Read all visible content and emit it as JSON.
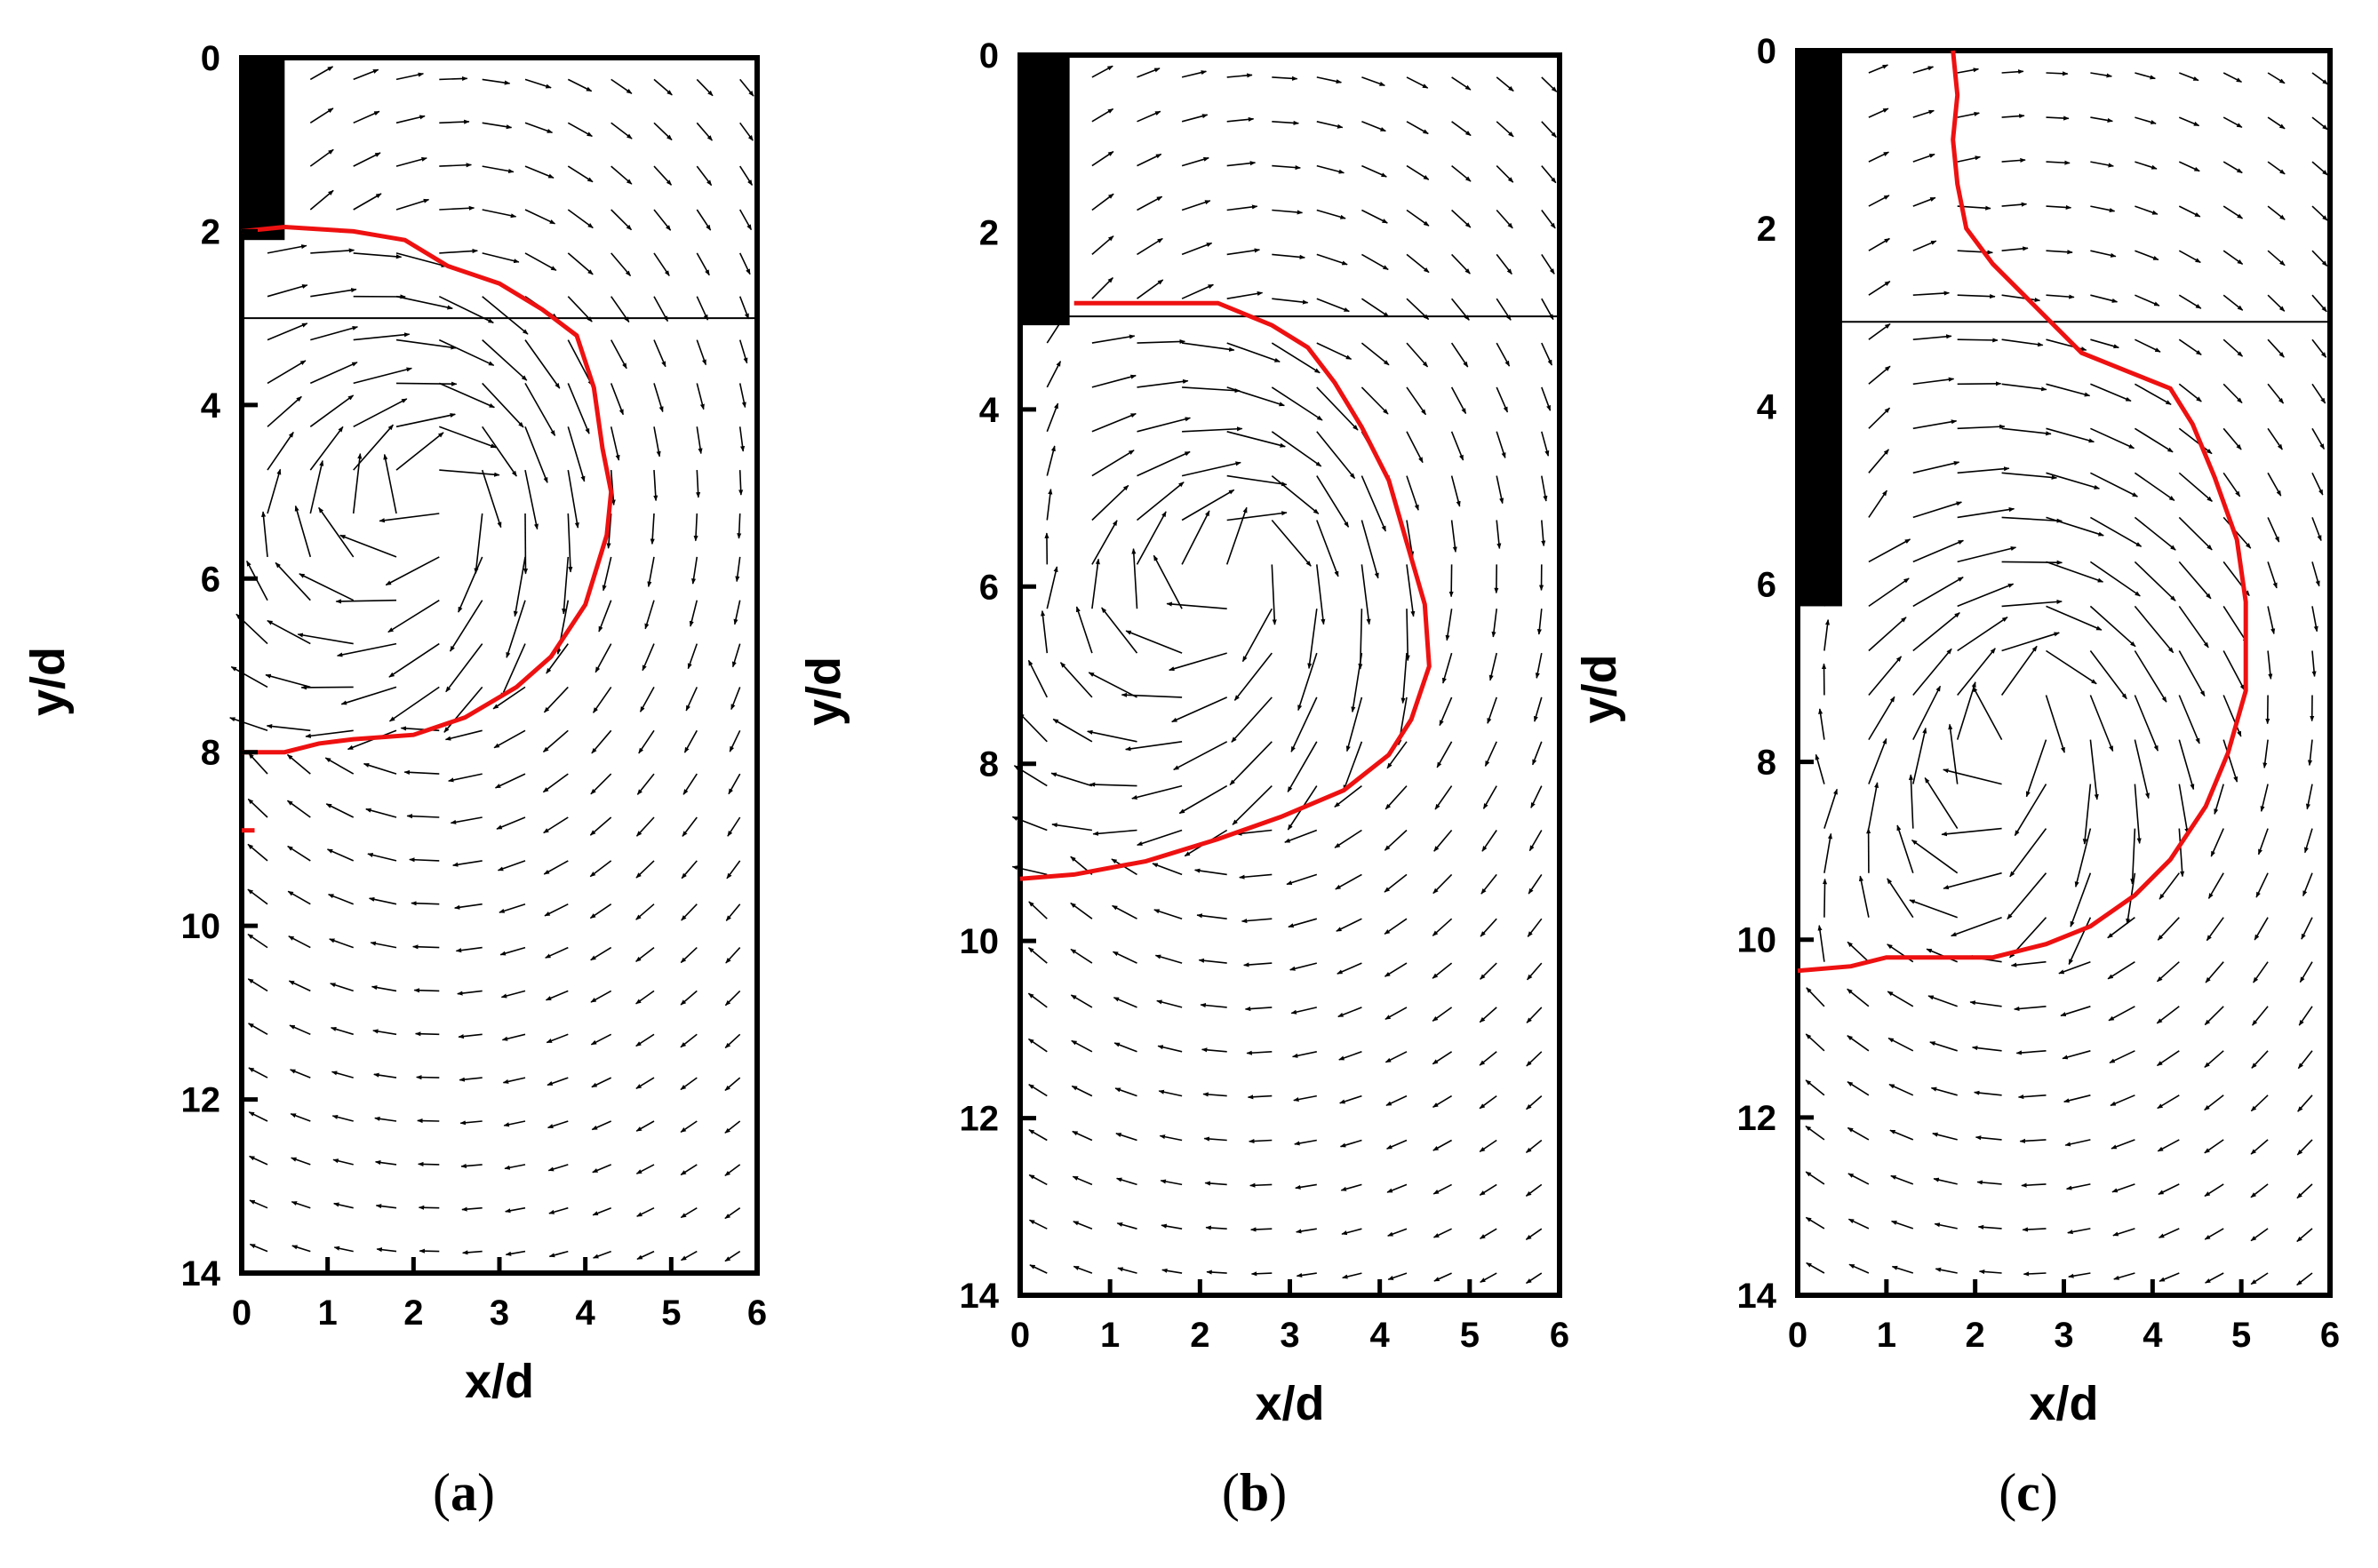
{
  "chart_data": [
    {
      "type": "vector-field",
      "panel_label": "(a)",
      "panel_letter": "a",
      "xlabel": "x/d",
      "ylabel": "y/d",
      "xlim": [
        0,
        6
      ],
      "ylim": [
        14,
        0
      ],
      "x_ticks": [
        "0",
        "1",
        "2",
        "3",
        "4",
        "5",
        "6"
      ],
      "y_ticks": [
        "0",
        "2",
        "4",
        "6",
        "8",
        "10",
        "12",
        "14"
      ],
      "wall": {
        "x_range": [
          0,
          0.5
        ],
        "y_range": [
          0,
          2.1
        ]
      },
      "horizontal_line_y": 3.0,
      "flow": {
        "jet_angle_deg": 75,
        "center": [
          2.4,
          5.0
        ],
        "stretch": 1.7
      },
      "boundary": {
        "color": "#ee1111",
        "points": [
          [
            0,
            2.0
          ],
          [
            0.5,
            1.95
          ],
          [
            1.3,
            2.0
          ],
          [
            1.9,
            2.1
          ],
          [
            2.4,
            2.4
          ],
          [
            3.0,
            2.6
          ],
          [
            3.5,
            2.9
          ],
          [
            3.9,
            3.2
          ],
          [
            4.1,
            3.8
          ],
          [
            4.2,
            4.5
          ],
          [
            4.3,
            5.0
          ],
          [
            4.25,
            5.5
          ],
          [
            4.0,
            6.3
          ],
          [
            3.6,
            6.9
          ],
          [
            3.2,
            7.25
          ],
          [
            2.6,
            7.6
          ],
          [
            2.0,
            7.8
          ],
          [
            1.3,
            7.85
          ],
          [
            0.9,
            7.9
          ],
          [
            0.5,
            8.0
          ],
          [
            0.0,
            8.0
          ]
        ],
        "extra_segment": [
          [
            0.0,
            8.9
          ],
          [
            0.15,
            8.9
          ]
        ]
      }
    },
    {
      "type": "vector-field",
      "panel_label": "(b)",
      "panel_letter": "b",
      "xlabel": "x/d",
      "ylabel": "y/d",
      "xlim": [
        0,
        6
      ],
      "ylim": [
        14,
        0
      ],
      "x_ticks": [
        "0",
        "1",
        "2",
        "3",
        "4",
        "5",
        "6"
      ],
      "y_ticks": [
        "0",
        "2",
        "4",
        "6",
        "8",
        "10",
        "12",
        "14"
      ],
      "wall": {
        "x_range": [
          0,
          0.55
        ],
        "y_range": [
          0,
          3.05
        ]
      },
      "horizontal_line_y": 2.95,
      "flow": {
        "jet_angle_deg": 70,
        "center": [
          2.6,
          5.7
        ],
        "stretch": 1.65
      },
      "boundary": {
        "color": "#ee1111",
        "points": [
          [
            0.6,
            2.8
          ],
          [
            2.2,
            2.8
          ],
          [
            2.8,
            3.05
          ],
          [
            3.2,
            3.3
          ],
          [
            3.5,
            3.7
          ],
          [
            3.8,
            4.2
          ],
          [
            4.1,
            4.8
          ],
          [
            4.3,
            5.5
          ],
          [
            4.5,
            6.2
          ],
          [
            4.55,
            6.9
          ],
          [
            4.35,
            7.5
          ],
          [
            4.1,
            7.9
          ],
          [
            3.6,
            8.3
          ],
          [
            2.9,
            8.6
          ],
          [
            2.2,
            8.85
          ],
          [
            1.4,
            9.1
          ],
          [
            0.6,
            9.25
          ],
          [
            0.0,
            9.3
          ]
        ]
      }
    },
    {
      "type": "vector-field",
      "panel_label": "(c)",
      "panel_letter": "c",
      "xlabel": "x/d",
      "ylabel": "y/d",
      "xlim": [
        0,
        6
      ],
      "ylim": [
        14,
        0
      ],
      "x_ticks": [
        "0",
        "1",
        "2",
        "3",
        "4",
        "5",
        "6"
      ],
      "y_ticks": [
        "0",
        "2",
        "4",
        "6",
        "8",
        "10",
        "12",
        "14"
      ],
      "wall": {
        "x_range": [
          0,
          0.5
        ],
        "y_range": [
          0,
          6.25
        ]
      },
      "horizontal_line_y": 3.05,
      "flow": {
        "jet_angle_deg": 30,
        "center": [
          2.6,
          7.2
        ],
        "stretch": 1.6
      },
      "boundary": {
        "color": "#ee1111",
        "points": [
          [
            1.75,
            0.0
          ],
          [
            1.8,
            0.5
          ],
          [
            1.75,
            1.0
          ],
          [
            1.8,
            1.5
          ],
          [
            1.9,
            2.0
          ],
          [
            2.2,
            2.4
          ],
          [
            2.6,
            2.8
          ],
          [
            2.9,
            3.1
          ],
          [
            3.2,
            3.4
          ],
          [
            3.7,
            3.6
          ],
          [
            4.2,
            3.8
          ],
          [
            4.45,
            4.2
          ],
          [
            4.7,
            4.8
          ],
          [
            4.95,
            5.5
          ],
          [
            5.05,
            6.2
          ],
          [
            5.05,
            7.2
          ],
          [
            4.85,
            7.9
          ],
          [
            4.6,
            8.5
          ],
          [
            4.2,
            9.1
          ],
          [
            3.8,
            9.5
          ],
          [
            3.3,
            9.85
          ],
          [
            2.8,
            10.05
          ],
          [
            2.2,
            10.2
          ],
          [
            1.0,
            10.2
          ],
          [
            0.6,
            10.3
          ],
          [
            0.0,
            10.35
          ]
        ]
      }
    }
  ]
}
